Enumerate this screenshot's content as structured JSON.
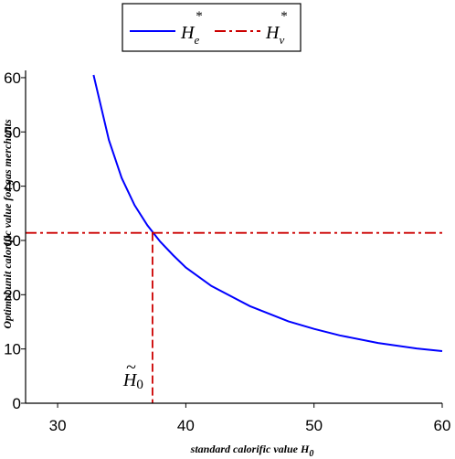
{
  "chart_data": {
    "type": "line",
    "xlabel": "standard calorific value H",
    "xlabel_sub": "0",
    "ylabel": "Optimal unit calorific value for gas merchants",
    "xlim": [
      27.5,
      60
    ],
    "ylim": [
      0,
      61
    ],
    "x_ticks": [
      30,
      40,
      50,
      60
    ],
    "y_ticks": [
      0,
      10,
      20,
      30,
      40,
      50,
      60
    ],
    "grid": false,
    "legend_position": "top",
    "series": [
      {
        "name": "H",
        "name_sub": "e",
        "name_sup": "*",
        "style": "solid",
        "color": "#0000ff",
        "x": [
          32.8,
          34,
          35,
          36,
          37,
          38,
          39,
          40,
          42,
          45,
          48,
          50,
          52,
          55,
          58,
          60
        ],
        "y": [
          60.5,
          48.5,
          41.5,
          36.5,
          32.8,
          29.8,
          27.3,
          25.0,
          21.6,
          17.9,
          15.1,
          13.7,
          12.5,
          11.1,
          10.1,
          9.6
        ]
      },
      {
        "name": "H",
        "name_sub": "v",
        "name_sup": "*",
        "style": "dashdot",
        "color": "#cc0000",
        "x": [
          27.5,
          60
        ],
        "y": [
          31.4,
          31.4
        ]
      }
    ],
    "annotations": [
      {
        "text": "H",
        "sub": "0",
        "accent": "~",
        "x": 37.4,
        "y_from": 0,
        "y_to": 31.4,
        "color": "#cc0000",
        "style": "dashed"
      }
    ]
  }
}
